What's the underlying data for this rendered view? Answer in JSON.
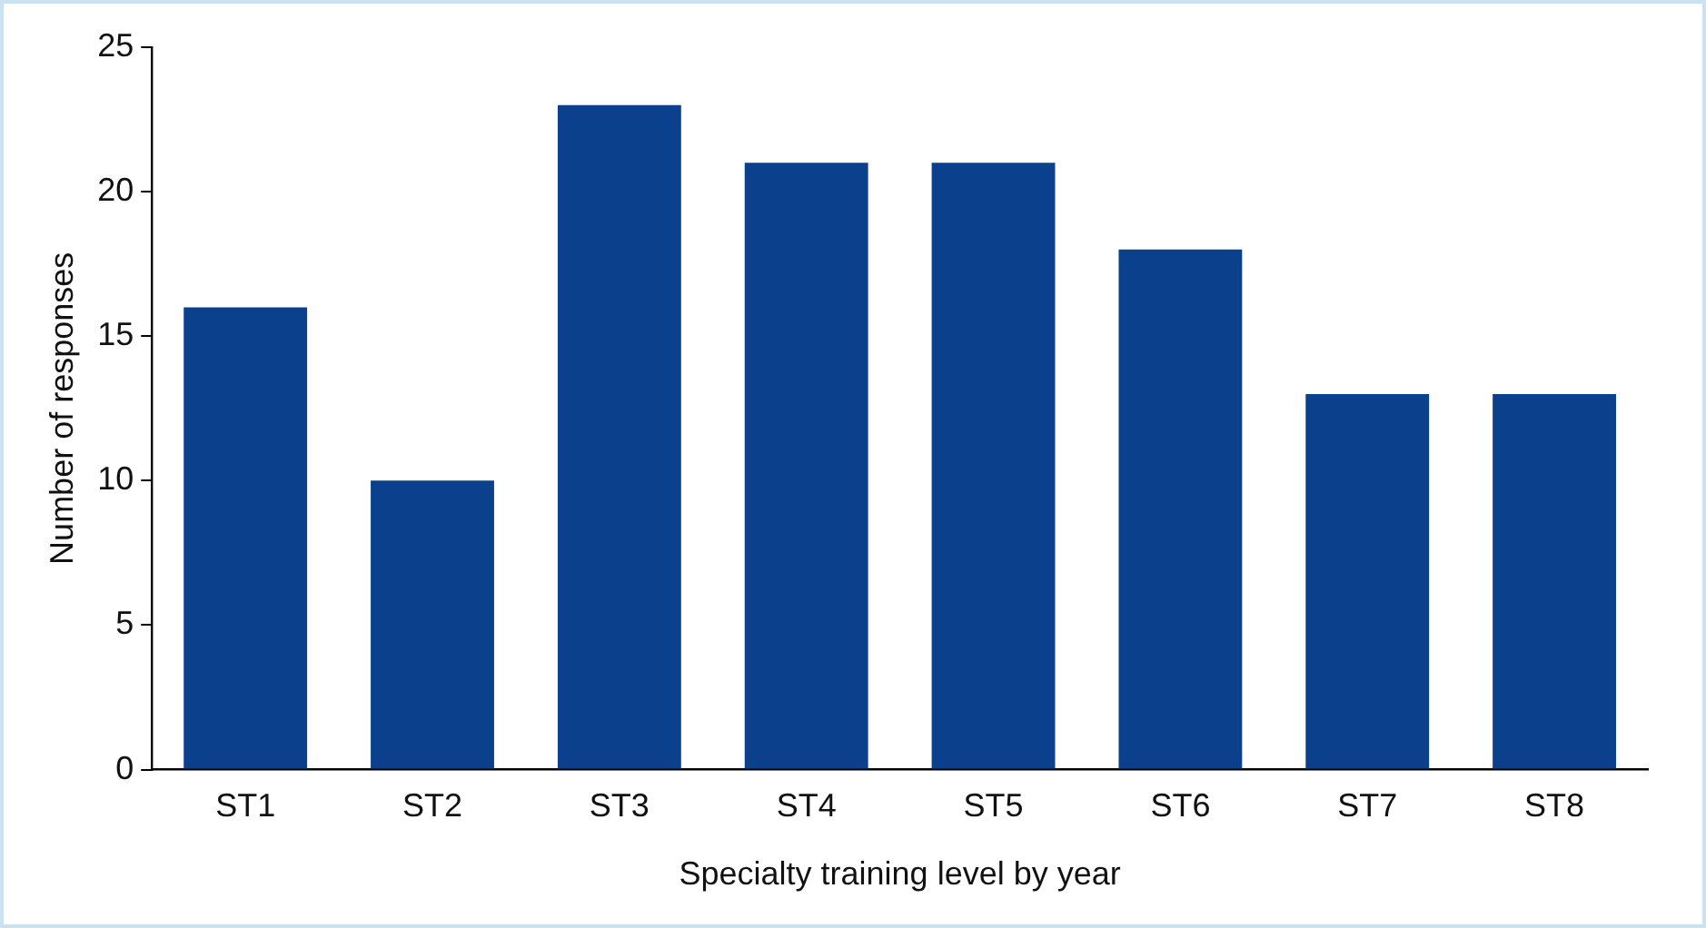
{
  "chart_data": {
    "type": "bar",
    "xlabel": "Specialty training level by year",
    "ylabel": "Number of responses",
    "categories": [
      "ST1",
      "ST2",
      "ST3",
      "ST4",
      "ST5",
      "ST6",
      "ST7",
      "ST8"
    ],
    "values": [
      16,
      10,
      23,
      21,
      21,
      18,
      13,
      13
    ],
    "color": "#0a408c",
    "ylim": [
      0,
      25
    ],
    "yticks": [
      0,
      5,
      10,
      15,
      20,
      25
    ],
    "grid": false,
    "legend": false
  }
}
